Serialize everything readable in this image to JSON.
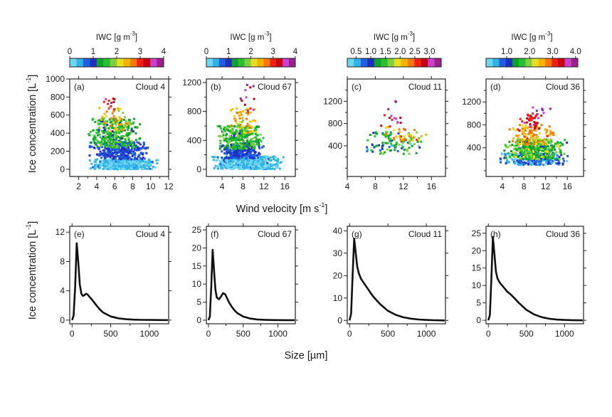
{
  "figure": {
    "top_xlabel": "Wind velocity [m s",
    "top_xlabel_sup": "-1",
    "top_xlabel_close": "]",
    "bottom_xlabel": "Size [µm]",
    "ylabel": "Ice concentration [L",
    "ylabel_sup": "-1",
    "ylabel_close": "]"
  },
  "colorbar_colors": [
    "#6fd6f0",
    "#2fb3e8",
    "#1f5fe0",
    "#1f2fc0",
    "#10a030",
    "#26c030",
    "#7ed040",
    "#e4e020",
    "#f5b400",
    "#f57a00",
    "#ee2010",
    "#c80010",
    "#cc40cc",
    "#9a2090"
  ],
  "chart_data": [
    {
      "type": "scatter",
      "panel": "(a)",
      "cloud": "Cloud 4",
      "xlim": [
        1,
        12
      ],
      "ylim": [
        -80,
        1000
      ],
      "xticks": [
        2,
        4,
        6,
        8,
        10,
        12
      ],
      "yticks": [
        0,
        200,
        400,
        600,
        800,
        1000
      ],
      "colorbar": {
        "label": "IWC [g m",
        "label_sup": "-3",
        "label_close": "]",
        "range": [
          0,
          4
        ],
        "ticks": [
          0,
          1,
          2,
          3,
          4
        ],
        "tick_labels": [
          "0",
          "1",
          "2",
          "3",
          "4"
        ]
      },
      "clusters": [
        {
          "x": [
            3,
            11
          ],
          "y": [
            0,
            110
          ],
          "iwc": [
            0.05,
            0.6
          ],
          "n": 500
        },
        {
          "x": [
            3,
            10
          ],
          "y": [
            110,
            300
          ],
          "iwc": [
            0.6,
            1.1
          ],
          "n": 300
        },
        {
          "x": [
            3,
            9
          ],
          "y": [
            240,
            560
          ],
          "iwc": [
            1.1,
            1.9
          ],
          "n": 300
        },
        {
          "x": [
            4,
            8
          ],
          "y": [
            420,
            680
          ],
          "iwc": [
            1.9,
            2.8
          ],
          "n": 45
        },
        {
          "x": [
            4.5,
            6.5
          ],
          "y": [
            620,
            800
          ],
          "iwc": [
            2.8,
            4
          ],
          "n": 12
        }
      ]
    },
    {
      "type": "scatter",
      "panel": "(b)",
      "cloud": "Cloud 67",
      "xlim": [
        1,
        18
      ],
      "ylim": [
        -100,
        1250
      ],
      "xticks": [
        4,
        8,
        12,
        16
      ],
      "yticks": [
        0,
        400,
        800,
        1200
      ],
      "minor_yticks": [
        200,
        600,
        1000
      ],
      "colorbar": {
        "label": "IWC [g m",
        "label_sup": "-3",
        "label_close": "]",
        "range": [
          0,
          4
        ],
        "ticks": [
          0,
          1,
          2,
          3,
          4
        ],
        "tick_labels": [
          "0",
          "1",
          "2",
          "3",
          "4"
        ]
      },
      "clusters": [
        {
          "x": [
            2,
            16
          ],
          "y": [
            0,
            180
          ],
          "iwc": [
            0.05,
            0.6
          ],
          "n": 500
        },
        {
          "x": [
            3,
            12
          ],
          "y": [
            150,
            330
          ],
          "iwc": [
            0.6,
            1.1
          ],
          "n": 260
        },
        {
          "x": [
            3,
            12
          ],
          "y": [
            280,
            600
          ],
          "iwc": [
            1.1,
            1.9
          ],
          "n": 300
        },
        {
          "x": [
            5,
            11
          ],
          "y": [
            500,
            850
          ],
          "iwc": [
            1.9,
            2.8
          ],
          "n": 55
        },
        {
          "x": [
            7,
            11
          ],
          "y": [
            780,
            1230
          ],
          "iwc": [
            2.8,
            4
          ],
          "n": 14
        }
      ]
    },
    {
      "type": "scatter",
      "panel": "(c)",
      "cloud": "Cloud 11",
      "xlim": [
        4,
        18
      ],
      "ylim": [
        -150,
        1600
      ],
      "xticks": [
        4,
        8,
        12,
        16
      ],
      "yticks": [
        400,
        800,
        1200
      ],
      "minor_yticks": [
        0,
        200,
        600,
        1000,
        1400
      ],
      "colorbar": {
        "label": "IWC [g m",
        "label_sup": "-3",
        "label_close": "]",
        "range": [
          0.2,
          3.4
        ],
        "ticks": [
          0.5,
          1.0,
          1.5,
          2.0,
          2.5,
          3.0
        ],
        "tick_labels": [
          "0.5",
          "1.0",
          "1.5",
          "2.0",
          "2.5",
          "3.0"
        ]
      },
      "clusters": [
        {
          "x": [
            6,
            15
          ],
          "y": [
            300,
            450
          ],
          "iwc": [
            0.3,
            1.0
          ],
          "n": 15
        },
        {
          "x": [
            6,
            15
          ],
          "y": [
            250,
            650
          ],
          "iwc": [
            1.0,
            1.8
          ],
          "n": 90
        },
        {
          "x": [
            8,
            16
          ],
          "y": [
            480,
            750
          ],
          "iwc": [
            1.8,
            2.6
          ],
          "n": 35
        },
        {
          "x": [
            8,
            13
          ],
          "y": [
            700,
            950
          ],
          "iwc": [
            2.6,
            3.2
          ],
          "n": 12
        },
        {
          "x": [
            9,
            12
          ],
          "y": [
            1050,
            1200
          ],
          "iwc": [
            3.2,
            3.4
          ],
          "n": 3
        }
      ]
    },
    {
      "type": "scatter",
      "panel": "(d)",
      "cloud": "Cloud 36",
      "xlim": [
        1,
        19
      ],
      "ylim": [
        -100,
        1600
      ],
      "xticks": [
        4,
        8,
        12,
        16
      ],
      "yticks": [
        400,
        800,
        1200
      ],
      "minor_yticks": [
        0,
        200,
        600,
        1000,
        1400
      ],
      "colorbar": {
        "label": "IWC [g m",
        "label_sup": "-3",
        "label_close": "]",
        "range": [
          0.1,
          4.1
        ],
        "ticks": [
          1.0,
          2.0,
          3.0,
          4.0
        ],
        "tick_labels": [
          "1.0",
          "2.0",
          "3.0",
          "4.0"
        ]
      },
      "clusters": [
        {
          "x": [
            3,
            17
          ],
          "y": [
            100,
            300
          ],
          "iwc": [
            0.2,
            1.2
          ],
          "n": 250
        },
        {
          "x": [
            4,
            16
          ],
          "y": [
            200,
            550
          ],
          "iwc": [
            1.2,
            2.2
          ],
          "n": 400
        },
        {
          "x": [
            5,
            14
          ],
          "y": [
            450,
            800
          ],
          "iwc": [
            2.2,
            3.0
          ],
          "n": 120
        },
        {
          "x": [
            7,
            12
          ],
          "y": [
            700,
            1000
          ],
          "iwc": [
            3.0,
            3.6
          ],
          "n": 35
        },
        {
          "x": [
            8,
            13
          ],
          "y": [
            900,
            1120
          ],
          "iwc": [
            3.6,
            4.1
          ],
          "n": 8
        }
      ]
    },
    {
      "type": "line",
      "panel": "(e)",
      "cloud": "Cloud 4",
      "xlim": [
        -30,
        1250
      ],
      "ylim": [
        -0.5,
        12.8
      ],
      "xticks": [
        0,
        500,
        1000
      ],
      "yticks": [
        0,
        4,
        8,
        12
      ],
      "x": [
        0,
        20,
        40,
        60,
        80,
        100,
        120,
        140,
        160,
        180,
        200,
        240,
        280,
        320,
        360,
        400,
        500,
        600,
        700,
        800,
        900,
        1000,
        1100,
        1200,
        1240
      ],
      "y": [
        0,
        0.6,
        4.5,
        10.5,
        8.0,
        4.9,
        3.6,
        3.3,
        3.4,
        3.6,
        3.5,
        3.0,
        2.5,
        1.95,
        1.45,
        1.05,
        0.5,
        0.25,
        0.12,
        0.06,
        0.03,
        0.02,
        0.01,
        0.0,
        0.0
      ]
    },
    {
      "type": "line",
      "panel": "(f)",
      "cloud": "Cloud 67",
      "xlim": [
        -30,
        1250
      ],
      "ylim": [
        -1,
        26
      ],
      "xticks": [
        0,
        500,
        1000
      ],
      "yticks": [
        0,
        5,
        10,
        15,
        20,
        25
      ],
      "x": [
        0,
        20,
        40,
        60,
        80,
        100,
        120,
        150,
        180,
        210,
        240,
        270,
        300,
        340,
        380,
        420,
        500,
        600,
        700,
        800,
        900,
        1000,
        1100,
        1200,
        1240
      ],
      "y": [
        0,
        1.0,
        9.0,
        19.5,
        14.0,
        8.5,
        6.3,
        5.8,
        6.5,
        7.5,
        7.2,
        6.0,
        4.8,
        3.6,
        2.6,
        1.9,
        1.0,
        0.45,
        0.2,
        0.1,
        0.05,
        0.02,
        0.01,
        0.0,
        0.0
      ]
    },
    {
      "type": "line",
      "panel": "(g)",
      "cloud": "Cloud 11",
      "xlim": [
        -30,
        1250
      ],
      "ylim": [
        -1.5,
        42
      ],
      "xticks": [
        0,
        500,
        1000
      ],
      "yticks": [
        0,
        10,
        20,
        30,
        40
      ],
      "x": [
        0,
        20,
        40,
        60,
        80,
        100,
        120,
        150,
        200,
        250,
        300,
        350,
        400,
        500,
        600,
        700,
        800,
        900,
        1000,
        1100,
        1200,
        1240
      ],
      "y": [
        0,
        3,
        20,
        36.5,
        30,
        24,
        21,
        18.5,
        16,
        13.5,
        11,
        9,
        7.2,
        4.3,
        2.5,
        1.4,
        0.8,
        0.4,
        0.2,
        0.1,
        0.03,
        0.0
      ]
    },
    {
      "type": "line",
      "panel": "(h)",
      "cloud": "Cloud 36",
      "xlim": [
        -30,
        1250
      ],
      "ylim": [
        -1,
        27
      ],
      "xticks": [
        0,
        500,
        1000
      ],
      "yticks": [
        0,
        5,
        10,
        15,
        20,
        25
      ],
      "x": [
        0,
        20,
        40,
        60,
        80,
        100,
        120,
        150,
        200,
        250,
        300,
        350,
        400,
        500,
        600,
        700,
        800,
        900,
        1000,
        1100,
        1200,
        1240
      ],
      "y": [
        0,
        1.5,
        12,
        24,
        19,
        14,
        12,
        10.8,
        9.5,
        8.2,
        7.3,
        6.2,
        5.0,
        3.0,
        1.7,
        0.9,
        0.45,
        0.2,
        0.1,
        0.04,
        0.01,
        0.0
      ]
    }
  ]
}
